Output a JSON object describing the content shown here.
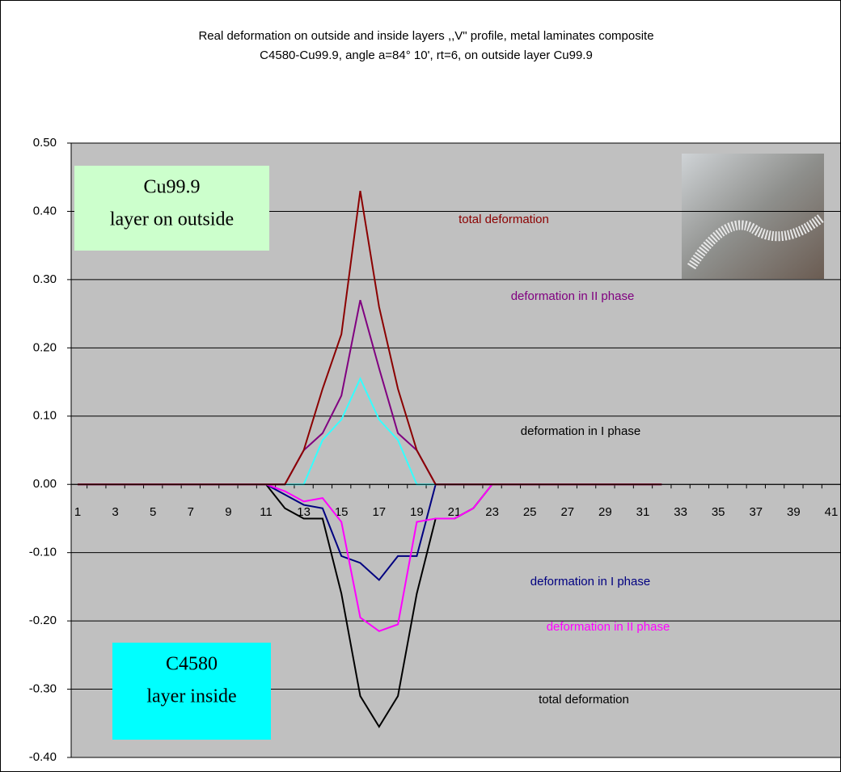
{
  "chart_data": {
    "type": "line",
    "title": [
      "Real deformation on outside and inside layers  ,,V\" profile, metal laminates composite",
      "C4580-Cu99.9, angle a=84° 10',  rt=6, on outside layer Cu99.9"
    ],
    "categories": [
      1,
      null,
      3,
      null,
      5,
      null,
      7,
      null,
      9,
      null,
      11,
      null,
      13,
      null,
      15,
      null,
      17,
      null,
      19,
      null,
      21,
      null,
      23,
      null,
      25,
      null,
      27,
      null,
      29,
      null,
      31,
      null,
      33,
      null,
      35,
      null,
      37,
      null,
      39,
      null,
      41
    ],
    "ylim": [
      -0.4,
      0.5
    ],
    "yticks": [
      {
        "value": -0.4,
        "label": "-0.40"
      },
      {
        "value": -0.3,
        "label": "-0.30"
      },
      {
        "value": -0.2,
        "label": "-0.20"
      },
      {
        "value": -0.1,
        "label": "-0.10"
      },
      {
        "value": 0,
        "label": "0.00"
      },
      {
        "value": 0.1,
        "label": "0.10"
      },
      {
        "value": 0.2,
        "label": "0.20"
      },
      {
        "value": 0.3,
        "label": "0.30"
      },
      {
        "value": 0.4,
        "label": "0.40"
      },
      {
        "value": 0.5,
        "label": "0.50"
      }
    ],
    "grid": true,
    "series": [
      {
        "name": "total deformation",
        "color": "#000000",
        "label_color": "#000000",
        "values": [
          0,
          0,
          0,
          0,
          0,
          0,
          0,
          0,
          0,
          0,
          0,
          -0.035,
          -0.05,
          -0.05,
          -0.16,
          -0.31,
          -0.355,
          -0.31,
          -0.16,
          -0.05,
          -0.05,
          -0.035,
          0,
          0,
          0,
          0,
          0,
          0,
          0,
          0,
          0,
          0,
          null,
          null,
          null,
          null,
          null,
          null,
          null,
          null,
          null
        ]
      },
      {
        "name": "deformation in I phase",
        "color": "#000080",
        "label_color": "#000080",
        "values": [
          0,
          0,
          0,
          0,
          0,
          0,
          0,
          0,
          0,
          0,
          0,
          -0.015,
          -0.03,
          -0.035,
          -0.105,
          -0.115,
          -0.14,
          -0.105,
          -0.105,
          0,
          0,
          0,
          0,
          0,
          0,
          0,
          0,
          0,
          0,
          0,
          0,
          0,
          null,
          null,
          null,
          null,
          null,
          null,
          null,
          null,
          null
        ]
      },
      {
        "name": "deformation in II phase",
        "color": "#ff00ff",
        "label_color": "#ff00ff",
        "values": [
          0,
          0,
          0,
          0,
          0,
          0,
          0,
          0,
          0,
          0,
          0,
          -0.01,
          -0.025,
          -0.02,
          -0.055,
          -0.195,
          -0.215,
          -0.205,
          -0.055,
          -0.05,
          -0.05,
          -0.035,
          0,
          0,
          0,
          0,
          0,
          0,
          0,
          0,
          0,
          0,
          null,
          null,
          null,
          null,
          null,
          null,
          null,
          null,
          null
        ]
      },
      {
        "name": "deformation in I phase",
        "color": "#33ffff",
        "label_color": "#000000",
        "values": [
          0,
          0,
          0,
          0,
          0,
          0,
          0,
          0,
          0,
          0,
          0,
          0,
          0,
          0.065,
          0.095,
          0.155,
          0.095,
          0.065,
          0,
          0,
          0,
          0,
          0,
          0,
          0,
          0,
          0,
          0,
          0,
          0,
          0,
          0,
          null,
          null,
          null,
          null,
          null,
          null,
          null,
          null,
          null
        ]
      },
      {
        "name": "deformation in II phase",
        "color": "#800080",
        "label_color": "#800080",
        "values": [
          0,
          0,
          0,
          0,
          0,
          0,
          0,
          0,
          0,
          0,
          0,
          0,
          0.05,
          0.075,
          0.13,
          0.27,
          0.17,
          0.075,
          0.05,
          0,
          0,
          0,
          0,
          0,
          0,
          0,
          0,
          0,
          0,
          0,
          0,
          0,
          null,
          null,
          null,
          null,
          null,
          null,
          null,
          null,
          null
        ]
      },
      {
        "name": "total deformation",
        "color": "#8b0000",
        "label_color": "#8b0000",
        "values": [
          0,
          0,
          0,
          0,
          0,
          0,
          0,
          0,
          0,
          0,
          0,
          0,
          0.05,
          0.14,
          0.22,
          0.43,
          0.26,
          0.14,
          0.05,
          0,
          0,
          0,
          0,
          0,
          0,
          0,
          0,
          0,
          0,
          0,
          0,
          0,
          null,
          null,
          null,
          null,
          null,
          null,
          null,
          null,
          null
        ]
      }
    ],
    "text_boxes": [
      {
        "lines": [
          "Cu99.9",
          "layer on outside"
        ],
        "color": "#ccffcc"
      },
      {
        "lines": [
          "C4580",
          "layer inside"
        ],
        "color": "#00ffff"
      }
    ]
  }
}
